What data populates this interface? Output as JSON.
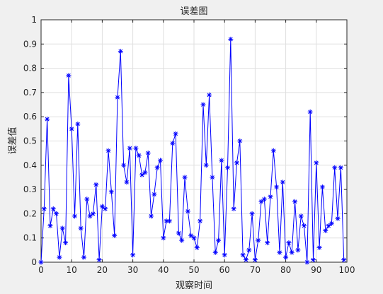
{
  "chart_data": {
    "type": "line",
    "title": "误差图",
    "xlabel": "观察时间",
    "ylabel": "误差值",
    "xlim": [
      0,
      100
    ],
    "ylim": [
      0,
      1
    ],
    "xticks": [
      0,
      10,
      20,
      30,
      40,
      50,
      60,
      70,
      80,
      90,
      100
    ],
    "yticks": [
      0,
      0.1,
      0.2,
      0.3,
      0.4,
      0.5,
      0.6,
      0.7,
      0.8,
      0.9,
      1
    ],
    "xtick_labels": [
      "0",
      "10",
      "20",
      "30",
      "40",
      "50",
      "60",
      "70",
      "80",
      "90",
      "100"
    ],
    "ytick_labels": [
      "0",
      "0.1",
      "0.2",
      "0.3",
      "0.4",
      "0.5",
      "0.6",
      "0.7",
      "0.8",
      "0.9",
      "1"
    ],
    "grid": true,
    "line_color": "#0000ff",
    "marker": "asterisk",
    "series": [
      {
        "x": [
          0,
          1,
          2,
          3,
          4,
          5,
          6,
          7,
          8,
          9,
          10,
          11,
          12,
          13,
          14,
          15,
          16,
          17,
          18,
          19,
          20,
          21,
          22,
          23,
          24,
          25,
          26,
          27,
          28,
          29,
          30,
          31,
          32,
          33,
          34,
          35,
          36,
          37,
          38,
          39,
          40,
          41,
          42,
          43,
          44,
          45,
          46,
          47,
          48,
          49,
          50,
          51,
          52,
          53,
          54,
          55,
          56,
          57,
          58,
          59,
          60,
          61,
          62,
          63,
          64,
          65,
          66,
          67,
          68,
          69,
          70,
          71,
          72,
          73,
          74,
          75,
          76,
          77,
          78,
          79,
          80,
          81,
          82,
          83,
          84,
          85,
          86,
          87,
          88,
          89,
          90,
          91,
          92,
          93,
          94,
          95,
          96,
          97,
          98,
          99
        ],
        "y": [
          0.0,
          0.22,
          0.59,
          0.15,
          0.22,
          0.2,
          0.02,
          0.14,
          0.08,
          0.77,
          0.55,
          0.19,
          0.57,
          0.14,
          0.02,
          0.26,
          0.19,
          0.2,
          0.32,
          0.01,
          0.23,
          0.22,
          0.46,
          0.29,
          0.11,
          0.68,
          0.87,
          0.4,
          0.33,
          0.47,
          0.03,
          0.47,
          0.44,
          0.36,
          0.37,
          0.45,
          0.19,
          0.28,
          0.39,
          0.42,
          0.1,
          0.17,
          0.17,
          0.49,
          0.53,
          0.12,
          0.09,
          0.35,
          0.21,
          0.11,
          0.1,
          0.06,
          0.17,
          0.65,
          0.4,
          0.69,
          0.35,
          0.04,
          0.09,
          0.42,
          0.03,
          0.39,
          0.92,
          0.22,
          0.41,
          0.5,
          0.03,
          0.01,
          0.05,
          0.2,
          0.01,
          0.09,
          0.25,
          0.26,
          0.08,
          0.27,
          0.46,
          0.31,
          0.04,
          0.33,
          0.02,
          0.08,
          0.04,
          0.25,
          0.05,
          0.19,
          0.15,
          0.0,
          0.62,
          0.01,
          0.41,
          0.06,
          0.31,
          0.13,
          0.15,
          0.16,
          0.39,
          0.18,
          0.39,
          0.01
        ]
      }
    ]
  }
}
